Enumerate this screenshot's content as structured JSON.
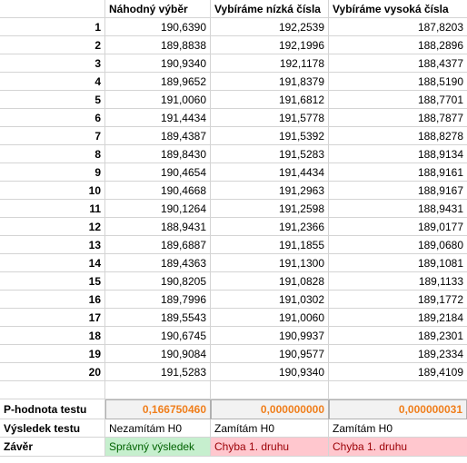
{
  "headers": {
    "col1": "Náhodný výběr",
    "col2": "Vybíráme nízká čísla",
    "col3": "Vybíráme vysoká čísla"
  },
  "rows": [
    {
      "index": "1",
      "random": "190,6390",
      "low": "192,2539",
      "high": "187,8203"
    },
    {
      "index": "2",
      "random": "189,8838",
      "low": "192,1996",
      "high": "188,2896"
    },
    {
      "index": "3",
      "random": "190,9340",
      "low": "192,1178",
      "high": "188,4377"
    },
    {
      "index": "4",
      "random": "189,9652",
      "low": "191,8379",
      "high": "188,5190"
    },
    {
      "index": "5",
      "random": "191,0060",
      "low": "191,6812",
      "high": "188,7701"
    },
    {
      "index": "6",
      "random": "191,4434",
      "low": "191,5778",
      "high": "188,7877"
    },
    {
      "index": "7",
      "random": "189,4387",
      "low": "191,5392",
      "high": "188,8278"
    },
    {
      "index": "8",
      "random": "189,8430",
      "low": "191,5283",
      "high": "188,9134"
    },
    {
      "index": "9",
      "random": "190,4654",
      "low": "191,4434",
      "high": "188,9161"
    },
    {
      "index": "10",
      "random": "190,4668",
      "low": "191,2963",
      "high": "188,9167"
    },
    {
      "index": "11",
      "random": "190,1264",
      "low": "191,2598",
      "high": "188,9431"
    },
    {
      "index": "12",
      "random": "188,9431",
      "low": "191,2366",
      "high": "189,0177"
    },
    {
      "index": "13",
      "random": "189,6887",
      "low": "191,1855",
      "high": "189,0680"
    },
    {
      "index": "14",
      "random": "189,4363",
      "low": "191,1300",
      "high": "189,1081"
    },
    {
      "index": "15",
      "random": "190,8205",
      "low": "191,0828",
      "high": "189,1133"
    },
    {
      "index": "16",
      "random": "189,7996",
      "low": "191,0302",
      "high": "189,1772"
    },
    {
      "index": "17",
      "random": "189,5543",
      "low": "191,0060",
      "high": "189,2184"
    },
    {
      "index": "18",
      "random": "190,6745",
      "low": "190,9937",
      "high": "189,2301"
    },
    {
      "index": "19",
      "random": "190,9084",
      "low": "190,9577",
      "high": "189,2334"
    },
    {
      "index": "20",
      "random": "191,5283",
      "low": "190,9340",
      "high": "189,4109"
    }
  ],
  "summary": {
    "pvalue_label": "P-hodnota testu",
    "pvalue_random": "0,166750460",
    "pvalue_low": "0,000000000",
    "pvalue_high": "0,000000031",
    "result_label": "Výsledek testu",
    "result_random": "Nezamítám H0",
    "result_low": "Zamítám H0",
    "result_high": "Zamítám H0",
    "conclusion_label": "Závěr",
    "conclusion_random": "Správný výsledek",
    "conclusion_low": "Chyba 1. druhu",
    "conclusion_high": "Chyba 1. druhu"
  },
  "colors": {
    "pvalue_text": "#f07e1b",
    "good_fill": "#c6efce",
    "good_text": "#006100",
    "bad_fill": "#ffc7ce",
    "bad_text": "#9c0006"
  }
}
